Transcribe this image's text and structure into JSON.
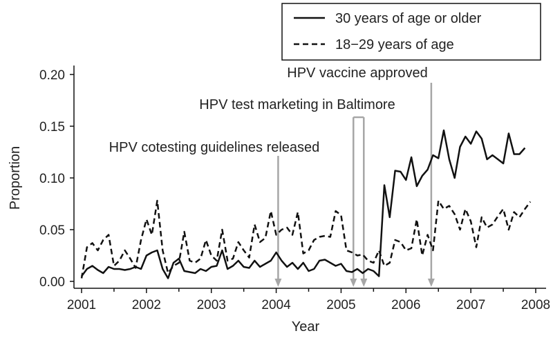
{
  "chart_data": {
    "type": "line",
    "title": "",
    "xlabel": "Year",
    "ylabel": "Proportion",
    "xlim": [
      2001,
      2008
    ],
    "ylim": [
      0,
      0.2
    ],
    "xticks": [
      "2001",
      "2002",
      "2003",
      "2004",
      "2005",
      "2006",
      "2007",
      "2008"
    ],
    "yticks": [
      "0.00",
      "0.05",
      "0.10",
      "0.15",
      "0.20"
    ],
    "legend_position": "top-right",
    "x_start": 2001,
    "x_step_months": 1,
    "series": [
      {
        "name": "30 years of age or older",
        "style": "solid",
        "values": [
          0.005,
          0.012,
          0.015,
          0.011,
          0.008,
          0.014,
          0.012,
          0.012,
          0.011,
          0.012,
          0.014,
          0.012,
          0.025,
          0.028,
          0.03,
          0.012,
          0.003,
          0.018,
          0.022,
          0.01,
          0.009,
          0.008,
          0.012,
          0.01,
          0.014,
          0.015,
          0.03,
          0.012,
          0.015,
          0.02,
          0.014,
          0.013,
          0.02,
          0.014,
          0.017,
          0.02,
          0.028,
          0.02,
          0.014,
          0.018,
          0.012,
          0.018,
          0.01,
          0.012,
          0.02,
          0.021,
          0.018,
          0.015,
          0.017,
          0.01,
          0.009,
          0.012,
          0.008,
          0.012,
          0.01,
          0.005,
          0.093,
          0.062,
          0.107,
          0.106,
          0.098,
          0.12,
          0.092,
          0.102,
          0.108,
          0.122,
          0.119,
          0.146,
          0.118,
          0.1,
          0.13,
          0.14,
          0.133,
          0.145,
          0.138,
          0.118,
          0.122,
          0.118,
          0.114,
          0.143,
          0.123,
          0.123,
          0.129
        ]
      },
      {
        "name": "18−29 years of age",
        "style": "dashed",
        "values": [
          0.003,
          0.033,
          0.037,
          0.03,
          0.04,
          0.045,
          0.015,
          0.02,
          0.03,
          0.022,
          0.013,
          0.04,
          0.06,
          0.045,
          0.078,
          0.03,
          0.008,
          0.015,
          0.018,
          0.048,
          0.02,
          0.018,
          0.022,
          0.04,
          0.025,
          0.02,
          0.05,
          0.02,
          0.022,
          0.038,
          0.03,
          0.023,
          0.055,
          0.038,
          0.042,
          0.068,
          0.045,
          0.05,
          0.052,
          0.045,
          0.067,
          0.027,
          0.03,
          0.04,
          0.043,
          0.044,
          0.043,
          0.068,
          0.064,
          0.03,
          0.028,
          0.025,
          0.026,
          0.02,
          0.018,
          0.03,
          0.015,
          0.018,
          0.04,
          0.038,
          0.03,
          0.032,
          0.06,
          0.025,
          0.045,
          0.03,
          0.078,
          0.07,
          0.073,
          0.065,
          0.05,
          0.07,
          0.058,
          0.033,
          0.062,
          0.052,
          0.055,
          0.063,
          0.07,
          0.05,
          0.067,
          0.062,
          0.07,
          0.077
        ]
      }
    ],
    "annotations": [
      {
        "text": "HPV cotesting guidelines released",
        "x": [
          2004.03
        ]
      },
      {
        "text": "HPV test marketing in Baltimore",
        "x": [
          2005.19,
          2005.35
        ]
      },
      {
        "text": "HPV vaccine approved",
        "x": [
          2006.39
        ]
      }
    ]
  },
  "colors": {
    "line": "#111111",
    "annotation": "#a6a6a6"
  }
}
